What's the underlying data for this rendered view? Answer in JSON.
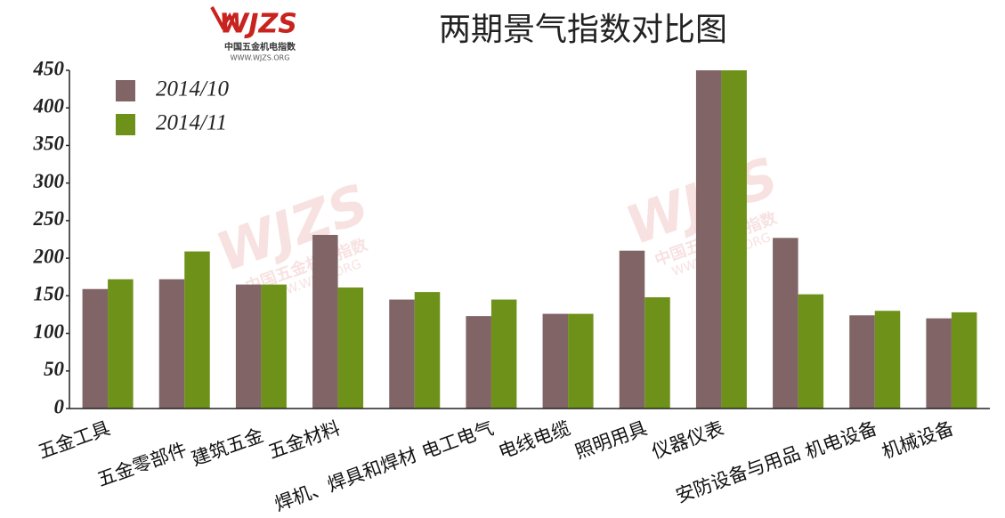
{
  "chart_data": {
    "type": "bar",
    "title": "两期景气指数对比图",
    "logo": {
      "brand": "WJZS",
      "name": "中国五金机电指数",
      "url": "WWW.WJZS.ORG"
    },
    "categories": [
      "五金工具",
      "五金零部件",
      "建筑五金",
      "五金材料",
      "焊机、焊具和焊材",
      "电工电气",
      "电线电缆",
      "照明用具",
      "仪器仪表",
      "安防设备与用品",
      "机电设备",
      "机械设备"
    ],
    "series": [
      {
        "name": "2014/10",
        "color": "#806466",
        "values": [
          159,
          172,
          165,
          231,
          145,
          123,
          126,
          210,
          450,
          227,
          124,
          120
        ]
      },
      {
        "name": "2014/11",
        "color": "#6e9119",
        "values": [
          172,
          209,
          165,
          161,
          155,
          145,
          126,
          148,
          450,
          152,
          130,
          128
        ]
      }
    ],
    "ylim": [
      0,
      450
    ],
    "yticks": [
      0,
      50,
      100,
      150,
      200,
      250,
      300,
      350,
      400,
      450
    ],
    "grid": false,
    "legend": "top-left"
  }
}
